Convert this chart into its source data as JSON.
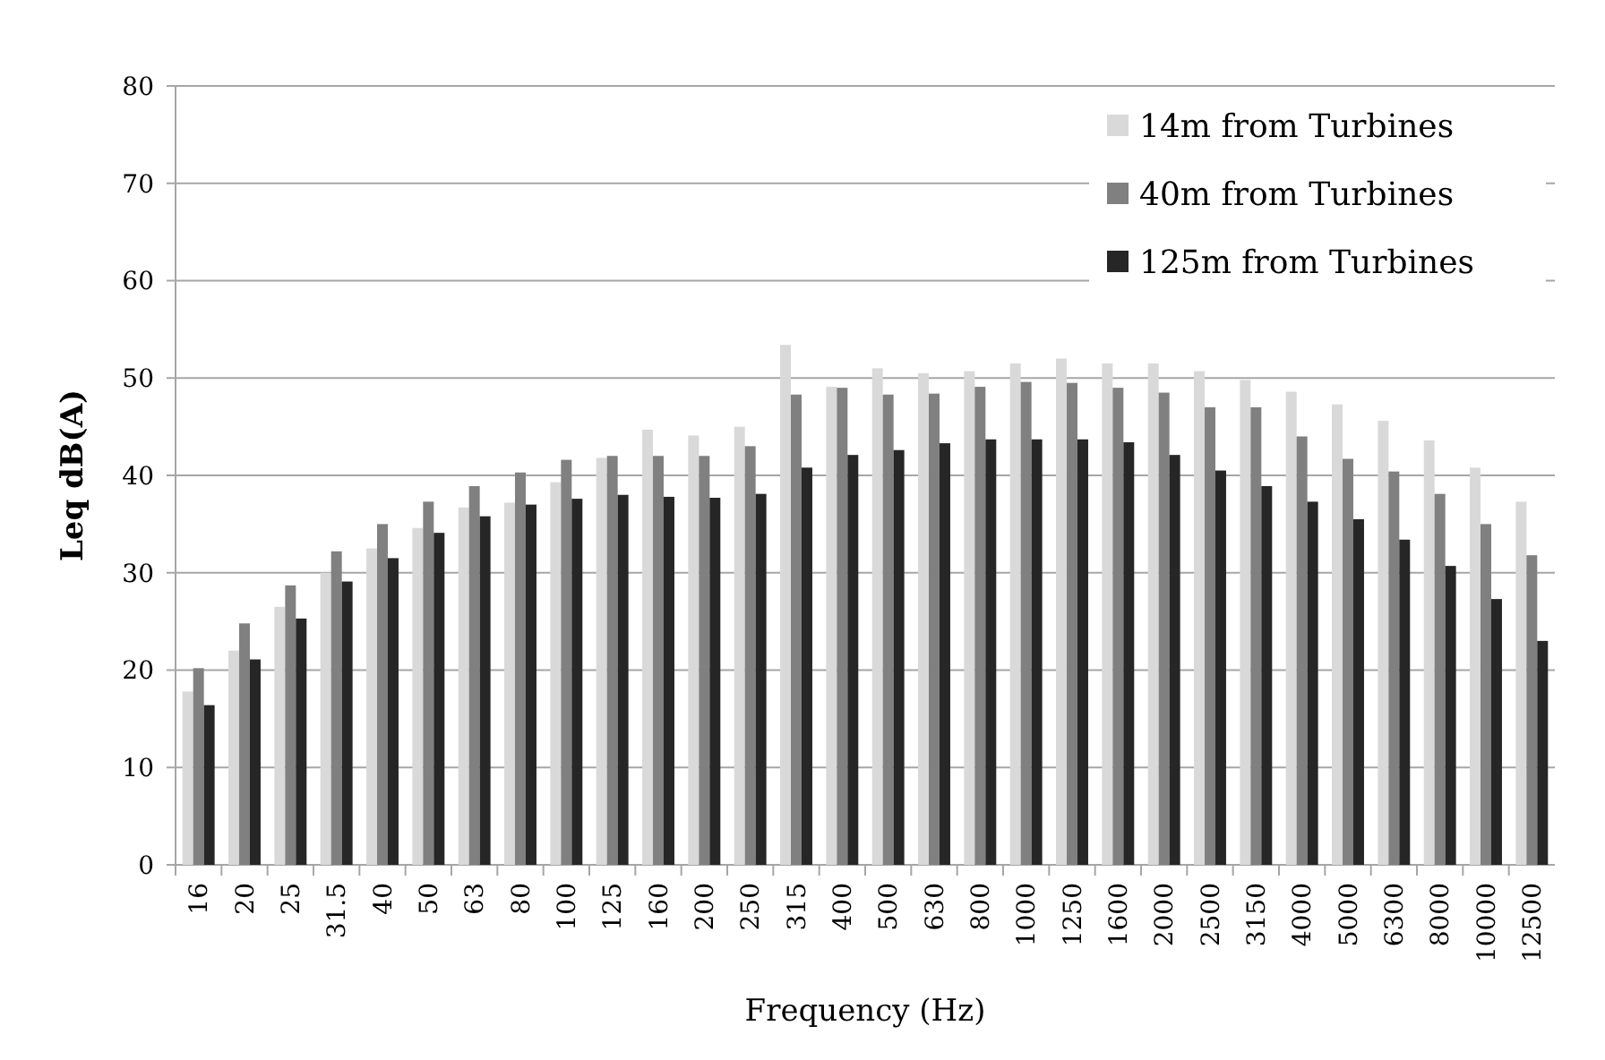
{
  "chart_data": {
    "type": "bar",
    "xlabel": "Frequency (Hz)",
    "ylabel": "Leq dB(A)",
    "categories": [
      "16",
      "20",
      "25",
      "31.5",
      "40",
      "50",
      "63",
      "80",
      "100",
      "125",
      "160",
      "200",
      "250",
      "315",
      "400",
      "500",
      "630",
      "800",
      "1000",
      "1250",
      "1600",
      "2000",
      "2500",
      "3150",
      "4000",
      "5000",
      "6300",
      "8000",
      "10000",
      "12500"
    ],
    "series": [
      {
        "name": "14m from Turbines",
        "color": "#d9d9d9",
        "values": [
          17.8,
          22,
          26.5,
          30,
          32.5,
          34.6,
          36.7,
          37.2,
          39.3,
          41.8,
          44.7,
          44.1,
          45,
          53.4,
          49.1,
          51,
          50.5,
          50.7,
          51.5,
          52,
          51.5,
          51.5,
          50.7,
          49.8,
          48.6,
          47.3,
          45.6,
          43.6,
          40.8,
          37.3
        ]
      },
      {
        "name": "40m from Turbines",
        "color": "#808080",
        "values": [
          20.2,
          24.8,
          28.7,
          32.2,
          35,
          37.3,
          38.9,
          40.3,
          41.6,
          42,
          42,
          42,
          43,
          48.3,
          49,
          48.3,
          48.4,
          49.1,
          49.6,
          49.5,
          49,
          48.5,
          47,
          47,
          44,
          41.7,
          40.4,
          38.1,
          35,
          31.8
        ]
      },
      {
        "name": "125m from Turbines",
        "color": "#262626",
        "values": [
          16.4,
          21.1,
          25.3,
          29.1,
          31.5,
          34.1,
          35.8,
          37,
          37.6,
          38,
          37.8,
          37.7,
          38.1,
          40.8,
          42.1,
          42.6,
          43.3,
          43.7,
          43.7,
          43.7,
          43.4,
          42.1,
          40.5,
          38.9,
          37.3,
          35.5,
          33.4,
          30.7,
          27.3,
          23
        ]
      }
    ],
    "ylim": [
      0,
      80
    ],
    "yticks": [
      0,
      10,
      20,
      30,
      40,
      50,
      60,
      70,
      80
    ],
    "grid": "y",
    "legend": "top right"
  }
}
